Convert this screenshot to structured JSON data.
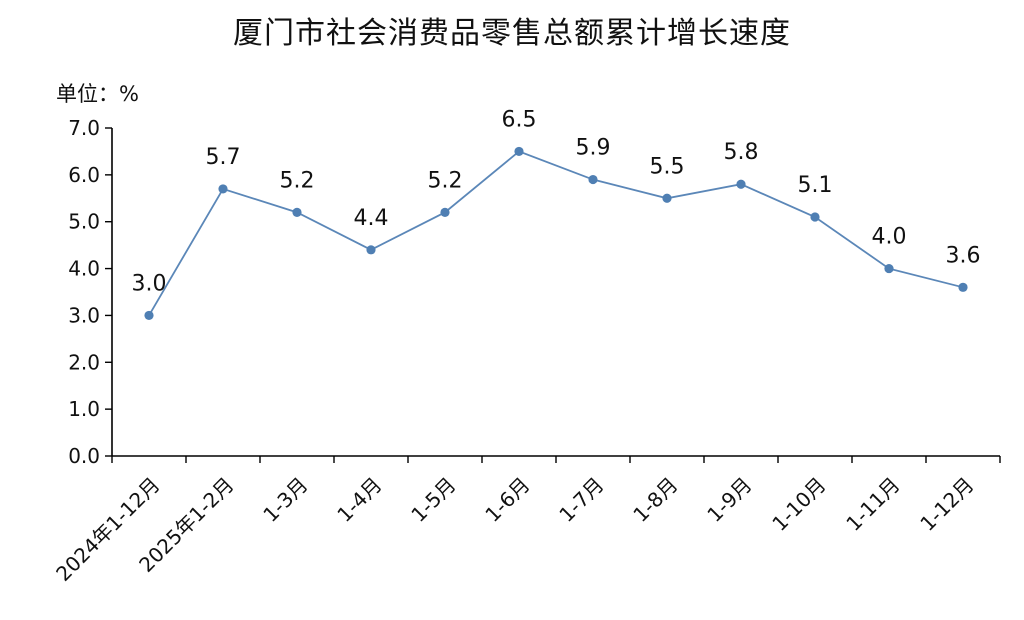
{
  "chart_data": {
    "type": "line",
    "title": "厦门市社会消费品零售总额累计增长速度",
    "unit_label": "单位：%",
    "categories": [
      "2024年1-12月",
      "2025年1-2月",
      "1-3月",
      "1-4月",
      "1-5月",
      "1-6月",
      "1-7月",
      "1-8月",
      "1-9月",
      "1-10月",
      "1-11月",
      "1-12月"
    ],
    "values": [
      3.0,
      5.7,
      5.2,
      4.4,
      5.2,
      6.5,
      5.9,
      5.5,
      5.8,
      5.1,
      4.0,
      3.6
    ],
    "data_labels": [
      "3.0",
      "5.7",
      "5.2",
      "4.4",
      "5.2",
      "6.5",
      "5.9",
      "5.5",
      "5.8",
      "5.1",
      "4.0",
      "3.6"
    ],
    "ylim": [
      0,
      7
    ],
    "yticks": [
      "0.0",
      "1.0",
      "2.0",
      "3.0",
      "4.0",
      "5.0",
      "6.0",
      "7.0"
    ],
    "grid": false,
    "line_color": "#5b87b8",
    "marker_color": "#4f7fb3"
  }
}
